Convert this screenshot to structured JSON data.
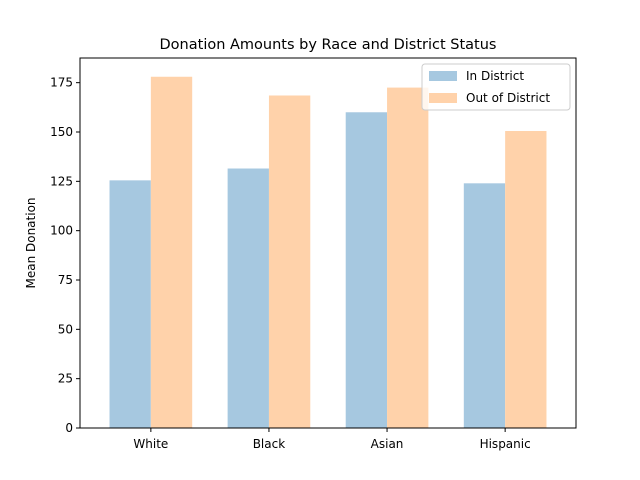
{
  "chart_data": {
    "type": "bar",
    "title": "Donation Amounts by Race and District Status",
    "xlabel": "",
    "ylabel": "Mean Donation",
    "categories": [
      "White",
      "Black",
      "Asian",
      "Hispanic"
    ],
    "series": [
      {
        "name": "In District",
        "values": [
          125.5,
          131.5,
          160.0,
          124.0
        ],
        "color": "#a6c8e0"
      },
      {
        "name": "Out of District",
        "values": [
          178.0,
          168.5,
          172.5,
          150.5
        ],
        "color": "#ffd2aa"
      }
    ],
    "ylim": [
      0,
      187.5
    ],
    "yticks": [
      0,
      25,
      50,
      75,
      100,
      125,
      150,
      175
    ],
    "grid": false,
    "legend_position": "top-right"
  }
}
